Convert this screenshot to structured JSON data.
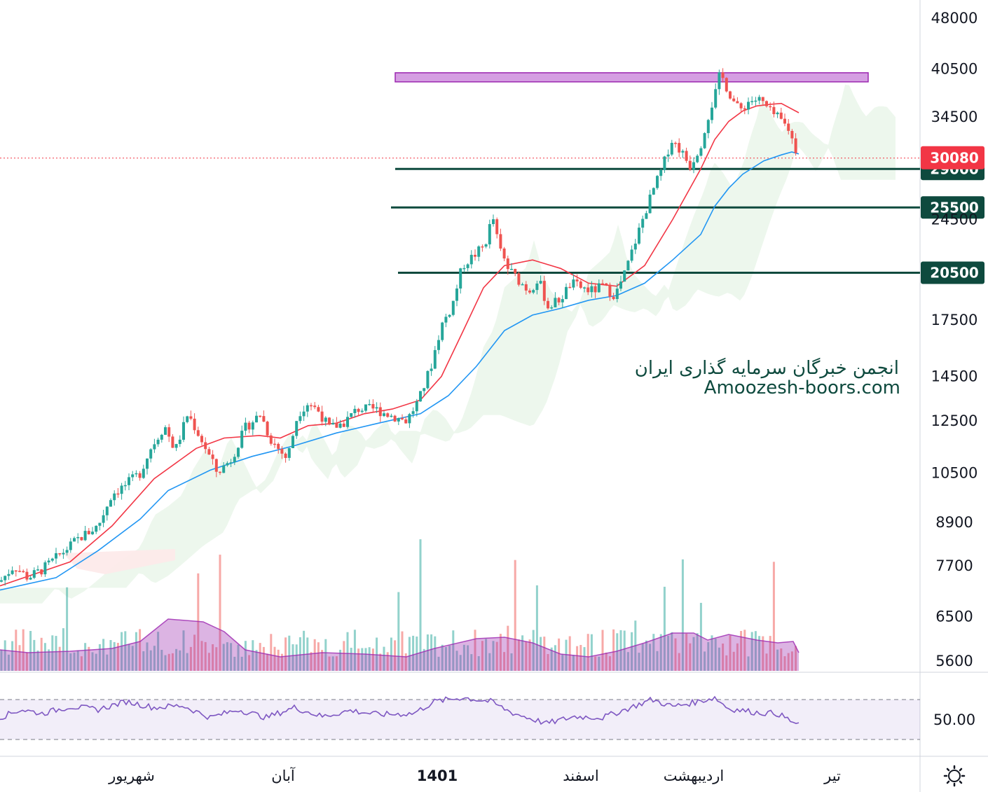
{
  "chart_data": {
    "type": "candlestick",
    "price_axis": {
      "scale": "log",
      "range": [
        5600,
        48000
      ],
      "ticks": [
        "48000",
        "40500",
        "34500",
        "24500",
        "17500",
        "14500",
        "12500",
        "10500",
        "8900",
        "7700",
        "6500",
        "5600"
      ]
    },
    "time_axis": {
      "labels": [
        "شهریور",
        "آبان",
        "1401",
        "اسفند",
        "اردیبهشت",
        "تیر"
      ],
      "bold_label": "1401"
    },
    "last_price": {
      "value": 30080,
      "label": "30080",
      "color": "#f23645"
    },
    "horizontal_levels": [
      {
        "value": 29000,
        "label": "29000",
        "color": "#0e4a3e"
      },
      {
        "value": 25500,
        "label": "25500",
        "color": "#0e4a3e"
      },
      {
        "value": 20500,
        "label": "20500",
        "color": "#0e4a3e"
      }
    ],
    "resistance_zone": {
      "low": 38800,
      "high": 40000,
      "color": "#c77dd8"
    },
    "price_path": [
      [
        0,
        7300
      ],
      [
        20,
        7700
      ],
      [
        40,
        7400
      ],
      [
        60,
        7600
      ],
      [
        80,
        7900
      ],
      [
        110,
        8400
      ],
      [
        140,
        8800
      ],
      [
        160,
        9800
      ],
      [
        180,
        10100
      ],
      [
        200,
        10500
      ],
      [
        215,
        11400
      ],
      [
        235,
        12300
      ],
      [
        250,
        11300
      ],
      [
        268,
        12800
      ],
      [
        290,
        11600
      ],
      [
        310,
        10500
      ],
      [
        330,
        11000
      ],
      [
        350,
        12200
      ],
      [
        372,
        12800
      ],
      [
        385,
        11800
      ],
      [
        400,
        11300
      ],
      [
        410,
        11000
      ],
      [
        425,
        12800
      ],
      [
        440,
        13300
      ],
      [
        455,
        12900
      ],
      [
        470,
        12200
      ],
      [
        490,
        12400
      ],
      [
        510,
        13000
      ],
      [
        535,
        13000
      ],
      [
        560,
        12700
      ],
      [
        580,
        12500
      ],
      [
        598,
        13400
      ],
      [
        615,
        15000
      ],
      [
        630,
        17200
      ],
      [
        645,
        18300
      ],
      [
        660,
        21000
      ],
      [
        678,
        21800
      ],
      [
        692,
        22500
      ],
      [
        703,
        24800
      ],
      [
        712,
        22300
      ],
      [
        725,
        20800
      ],
      [
        740,
        20000
      ],
      [
        755,
        19300
      ],
      [
        768,
        20100
      ],
      [
        782,
        18300
      ],
      [
        800,
        18800
      ],
      [
        815,
        19800
      ],
      [
        830,
        19500
      ],
      [
        845,
        19300
      ],
      [
        860,
        19600
      ],
      [
        878,
        19000
      ],
      [
        892,
        20500
      ],
      [
        905,
        22500
      ],
      [
        920,
        25000
      ],
      [
        932,
        27000
      ],
      [
        945,
        29000
      ],
      [
        958,
        32000
      ],
      [
        970,
        31000
      ],
      [
        985,
        29300
      ],
      [
        1000,
        31500
      ],
      [
        1010,
        34500
      ],
      [
        1020,
        37000
      ],
      [
        1028,
        40000
      ],
      [
        1040,
        37500
      ],
      [
        1055,
        35200
      ],
      [
        1070,
        36500
      ],
      [
        1085,
        36500
      ],
      [
        1100,
        35000
      ],
      [
        1112,
        34300
      ],
      [
        1125,
        33200
      ],
      [
        1140,
        30080
      ]
    ],
    "series": [
      {
        "name": "",
        "color": "#f23645",
        "points": [
          [
            0,
            7200
          ],
          [
            100,
            7800
          ],
          [
            160,
            8800
          ],
          [
            220,
            10300
          ],
          [
            280,
            11400
          ],
          [
            320,
            11800
          ],
          [
            370,
            11900
          ],
          [
            400,
            11800
          ],
          [
            440,
            12300
          ],
          [
            480,
            12400
          ],
          [
            520,
            12800
          ],
          [
            560,
            13000
          ],
          [
            600,
            13400
          ],
          [
            630,
            14500
          ],
          [
            660,
            16800
          ],
          [
            690,
            19500
          ],
          [
            720,
            21000
          ],
          [
            760,
            21400
          ],
          [
            800,
            20800
          ],
          [
            840,
            19800
          ],
          [
            880,
            19600
          ],
          [
            920,
            21000
          ],
          [
            960,
            24500
          ],
          [
            1000,
            29000
          ],
          [
            1020,
            32000
          ],
          [
            1040,
            34000
          ],
          [
            1060,
            35200
          ],
          [
            1080,
            35800
          ],
          [
            1100,
            36000
          ],
          [
            1115,
            36100
          ],
          [
            1140,
            35000
          ]
        ]
      },
      {
        "name": "",
        "color": "#2196f3",
        "points": [
          [
            0,
            7100
          ],
          [
            80,
            7400
          ],
          [
            140,
            8100
          ],
          [
            200,
            9000
          ],
          [
            240,
            9900
          ],
          [
            300,
            10600
          ],
          [
            360,
            11100
          ],
          [
            420,
            11500
          ],
          [
            480,
            12000
          ],
          [
            540,
            12400
          ],
          [
            600,
            12800
          ],
          [
            640,
            13600
          ],
          [
            680,
            15000
          ],
          [
            720,
            16900
          ],
          [
            760,
            17800
          ],
          [
            800,
            18200
          ],
          [
            840,
            18700
          ],
          [
            880,
            19000
          ],
          [
            920,
            19800
          ],
          [
            960,
            21400
          ],
          [
            1000,
            23300
          ],
          [
            1020,
            25600
          ],
          [
            1040,
            27200
          ],
          [
            1060,
            28500
          ],
          [
            1090,
            29800
          ],
          [
            1115,
            30400
          ],
          [
            1130,
            30700
          ],
          [
            1140,
            30500
          ]
        ]
      }
    ],
    "volume": {
      "colors": {
        "up": "#26a69a",
        "down": "#ef5350",
        "ma": "#9c27b0"
      }
    },
    "rsi": {
      "label": "50.00",
      "upper": 70,
      "lower": 30,
      "color": "#7e57c2"
    },
    "annotation": {
      "line1": "انجمن خبرگان سرمایه گذاری ایران",
      "line2": "Amoozesh-boors.com"
    }
  },
  "colors": {
    "up": "#26a69a",
    "down": "#ef5350",
    "level": "#0e4a3e",
    "cloud": "#e8f5e9"
  },
  "icons": {
    "settings": "gear-icon"
  }
}
